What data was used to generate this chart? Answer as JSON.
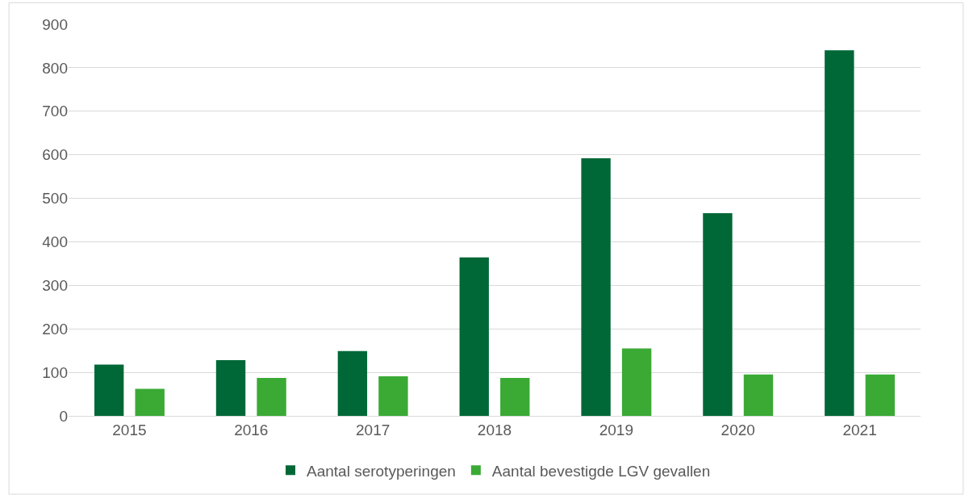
{
  "chart_data": {
    "type": "bar",
    "categories": [
      "2015",
      "2016",
      "2017",
      "2018",
      "2019",
      "2020",
      "2021"
    ],
    "series": [
      {
        "name": "Aantal serotyperingen",
        "color": "#006837",
        "values": [
          118,
          128,
          149,
          364,
          592,
          466,
          840
        ]
      },
      {
        "name": "Aantal bevestigde LGV gevallen",
        "color": "#3aaa35",
        "values": [
          62,
          87,
          91,
          87,
          155,
          95,
          95
        ]
      }
    ],
    "ylim": [
      0,
      900
    ],
    "yticks": [
      0,
      100,
      200,
      300,
      400,
      500,
      600,
      700,
      800,
      900
    ],
    "grid": "y",
    "legend": "bottom"
  }
}
